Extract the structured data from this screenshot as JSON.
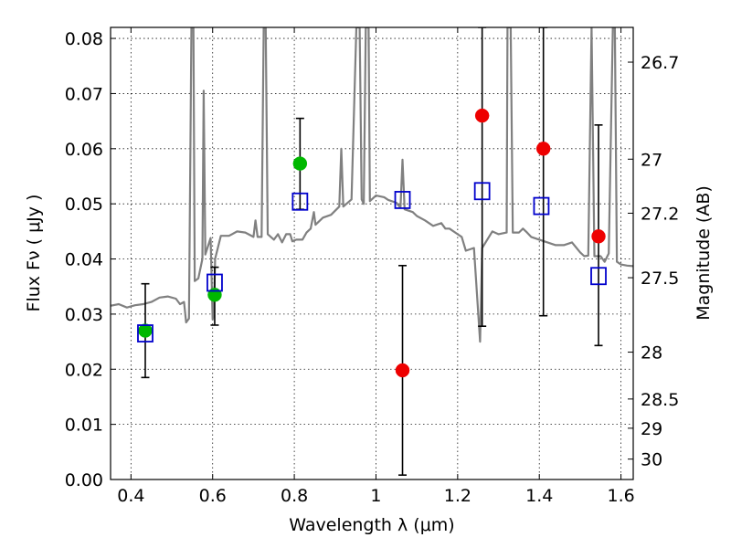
{
  "chart_data": {
    "type": "scatter",
    "xlabel": "Wavelength  λ (μm)",
    "ylabel": "Flux  Fν  ( μJy )",
    "ylabel_right": "Magnitude (AB)",
    "xlim": [
      0.35,
      1.63
    ],
    "ylim": [
      0.0,
      0.082
    ],
    "grid": true,
    "x_ticks": [
      0.4,
      0.6,
      0.8,
      1.0,
      1.2,
      1.4,
      1.6
    ],
    "x_tick_labels": [
      "0.4",
      "0.6",
      "0.8",
      "1",
      "1.2",
      "1.4",
      "1.6"
    ],
    "y_ticks": [
      0.0,
      0.01,
      0.02,
      0.03,
      0.04,
      0.05,
      0.06,
      0.07,
      0.08
    ],
    "y_tick_labels": [
      "0.00",
      "0.01",
      "0.02",
      "0.03",
      "0.04",
      "0.05",
      "0.06",
      "0.07",
      "0.08"
    ],
    "right_ticks": [
      {
        "label": "26.7",
        "flux": 0.0757
      },
      {
        "label": "27",
        "flux": 0.0581
      },
      {
        "label": "27.2",
        "flux": 0.0483
      },
      {
        "label": "27.5",
        "flux": 0.0366
      },
      {
        "label": "28",
        "flux": 0.0231
      },
      {
        "label": "28.5",
        "flux": 0.0146
      },
      {
        "label": "29",
        "flux": 0.0093
      },
      {
        "label": "30",
        "flux": 0.0037
      }
    ],
    "model_spectrum": {
      "color": "#808080",
      "points": [
        [
          0.35,
          0.0315
        ],
        [
          0.37,
          0.0318
        ],
        [
          0.39,
          0.0312
        ],
        [
          0.41,
          0.0316
        ],
        [
          0.43,
          0.0318
        ],
        [
          0.45,
          0.0322
        ],
        [
          0.47,
          0.033
        ],
        [
          0.49,
          0.0332
        ],
        [
          0.51,
          0.0328
        ],
        [
          0.52,
          0.0318
        ],
        [
          0.53,
          0.0322
        ],
        [
          0.535,
          0.0285
        ],
        [
          0.542,
          0.0292
        ],
        [
          0.548,
          0.082
        ],
        [
          0.553,
          0.082
        ],
        [
          0.556,
          0.036
        ],
        [
          0.565,
          0.0365
        ],
        [
          0.575,
          0.04
        ],
        [
          0.578,
          0.0705
        ],
        [
          0.582,
          0.0408
        ],
        [
          0.595,
          0.0438
        ],
        [
          0.6,
          0.029
        ],
        [
          0.603,
          0.03
        ],
        [
          0.606,
          0.04
        ],
        [
          0.62,
          0.0442
        ],
        [
          0.64,
          0.0442
        ],
        [
          0.66,
          0.045
        ],
        [
          0.68,
          0.0448
        ],
        [
          0.7,
          0.044
        ],
        [
          0.705,
          0.047
        ],
        [
          0.71,
          0.044
        ],
        [
          0.72,
          0.044
        ],
        [
          0.725,
          0.082
        ],
        [
          0.73,
          0.082
        ],
        [
          0.735,
          0.0445
        ],
        [
          0.75,
          0.0435
        ],
        [
          0.76,
          0.0445
        ],
        [
          0.77,
          0.043
        ],
        [
          0.78,
          0.0445
        ],
        [
          0.79,
          0.0445
        ],
        [
          0.795,
          0.0432
        ],
        [
          0.805,
          0.0435
        ],
        [
          0.82,
          0.0435
        ],
        [
          0.83,
          0.0448
        ],
        [
          0.84,
          0.0455
        ],
        [
          0.848,
          0.0485
        ],
        [
          0.852,
          0.0462
        ],
        [
          0.87,
          0.0475
        ],
        [
          0.89,
          0.048
        ],
        [
          0.91,
          0.0495
        ],
        [
          0.915,
          0.06
        ],
        [
          0.92,
          0.0495
        ],
        [
          0.94,
          0.0508
        ],
        [
          0.952,
          0.082
        ],
        [
          0.96,
          0.082
        ],
        [
          0.965,
          0.0508
        ],
        [
          0.97,
          0.05
        ],
        [
          0.975,
          0.082
        ],
        [
          0.982,
          0.082
        ],
        [
          0.985,
          0.0505
        ],
        [
          1.0,
          0.0515
        ],
        [
          1.02,
          0.0512
        ],
        [
          1.03,
          0.0507
        ],
        [
          1.05,
          0.0502
        ],
        [
          1.06,
          0.0493
        ],
        [
          1.065,
          0.058
        ],
        [
          1.07,
          0.049
        ],
        [
          1.09,
          0.0485
        ],
        [
          1.1,
          0.0478
        ],
        [
          1.12,
          0.047
        ],
        [
          1.14,
          0.046
        ],
        [
          1.16,
          0.0465
        ],
        [
          1.17,
          0.0455
        ],
        [
          1.18,
          0.0455
        ],
        [
          1.2,
          0.0445
        ],
        [
          1.21,
          0.044
        ],
        [
          1.22,
          0.0415
        ],
        [
          1.24,
          0.042
        ],
        [
          1.255,
          0.025
        ],
        [
          1.26,
          0.042
        ],
        [
          1.275,
          0.0438
        ],
        [
          1.285,
          0.045
        ],
        [
          1.3,
          0.0445
        ],
        [
          1.32,
          0.0448
        ],
        [
          1.322,
          0.082
        ],
        [
          1.33,
          0.082
        ],
        [
          1.335,
          0.0448
        ],
        [
          1.35,
          0.0448
        ],
        [
          1.36,
          0.0455
        ],
        [
          1.37,
          0.0448
        ],
        [
          1.38,
          0.044
        ],
        [
          1.4,
          0.0435
        ],
        [
          1.42,
          0.043
        ],
        [
          1.44,
          0.0425
        ],
        [
          1.46,
          0.0425
        ],
        [
          1.48,
          0.043
        ],
        [
          1.5,
          0.0412
        ],
        [
          1.51,
          0.0405
        ],
        [
          1.52,
          0.0406
        ],
        [
          1.528,
          0.082
        ],
        [
          1.535,
          0.0405
        ],
        [
          1.55,
          0.0405
        ],
        [
          1.56,
          0.0395
        ],
        [
          1.57,
          0.041
        ],
        [
          1.58,
          0.082
        ],
        [
          1.585,
          0.082
        ],
        [
          1.59,
          0.0395
        ],
        [
          1.6,
          0.039
        ],
        [
          1.615,
          0.0388
        ],
        [
          1.63,
          0.0387
        ]
      ]
    },
    "series": [
      {
        "color": "#00b800",
        "marker": "filled-circle",
        "points": [
          {
            "x": 0.435,
            "y": 0.027
          },
          {
            "x": 0.605,
            "y": 0.0335
          },
          {
            "x": 0.814,
            "y": 0.0573
          }
        ]
      },
      {
        "color": "#ee0000",
        "marker": "filled-circle",
        "points": [
          {
            "x": 1.065,
            "y": 0.0198
          },
          {
            "x": 1.26,
            "y": 0.066
          },
          {
            "x": 1.41,
            "y": 0.06
          },
          {
            "x": 1.545,
            "y": 0.0441
          }
        ]
      },
      {
        "color": "#0000cc",
        "marker": "open-square",
        "points": [
          {
            "x": 0.435,
            "y": 0.0265
          },
          {
            "x": 0.605,
            "y": 0.0357
          },
          {
            "x": 0.814,
            "y": 0.0504
          },
          {
            "x": 1.065,
            "y": 0.0507
          },
          {
            "x": 1.26,
            "y": 0.0523
          },
          {
            "x": 1.405,
            "y": 0.0496
          },
          {
            "x": 1.545,
            "y": 0.0369
          }
        ]
      }
    ],
    "error_bars": [
      {
        "x": 0.435,
        "low": 0.0185,
        "high": 0.0355
      },
      {
        "x": 0.605,
        "low": 0.028,
        "high": 0.0385
      },
      {
        "x": 0.814,
        "low": 0.049,
        "high": 0.0655
      },
      {
        "x": 1.065,
        "low": 0.0008,
        "high": 0.0388
      },
      {
        "x": 1.26,
        "low": 0.0278,
        "high": 0.082
      },
      {
        "x": 1.41,
        "low": 0.0297,
        "high": 0.082
      },
      {
        "x": 1.545,
        "low": 0.0243,
        "high": 0.0643
      }
    ]
  }
}
